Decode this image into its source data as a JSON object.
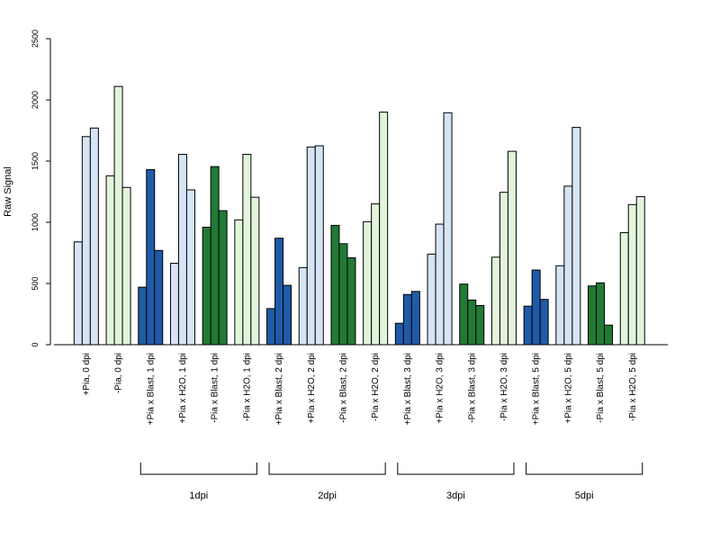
{
  "chart_data": {
    "type": "bar",
    "ylabel": "Raw Signal",
    "ylim": [
      0,
      2500
    ],
    "yticks": [
      0,
      500,
      1000,
      1500,
      2000,
      2500
    ],
    "grid": false,
    "legend": "none",
    "colors": {
      "plus_pia_blast": "#1f5ba8",
      "plus_pia_control": "#d6e4f5",
      "minus_pia_blast": "#217a35",
      "minus_pia_control": "#e2f5dc"
    },
    "categories": [
      {
        "label": "+Pia, 0 dpi",
        "color": "plus_pia_control",
        "values": [
          840,
          1700,
          1770
        ]
      },
      {
        "label": "-Pia, 0 dpi",
        "color": "minus_pia_control",
        "values": [
          1380,
          2110,
          1285
        ]
      },
      {
        "label": "+Pia x Blast, 1 dpi",
        "color": "plus_pia_blast",
        "values": [
          470,
          1430,
          770
        ]
      },
      {
        "label": "+Pia x H2O, 1 dpi",
        "color": "plus_pia_control",
        "values": [
          665,
          1555,
          1265
        ]
      },
      {
        "label": "-Pia x Blast, 1 dpi",
        "color": "minus_pia_blast",
        "values": [
          960,
          1455,
          1095
        ]
      },
      {
        "label": "-Pia x H2O, 1 dpi",
        "color": "minus_pia_control",
        "values": [
          1020,
          1555,
          1205
        ]
      },
      {
        "label": "+Pia x Blast, 2 dpi",
        "color": "plus_pia_blast",
        "values": [
          295,
          870,
          485
        ]
      },
      {
        "label": "+Pia x H2O, 2 dpi",
        "color": "plus_pia_control",
        "values": [
          630,
          1615,
          1625
        ]
      },
      {
        "label": "-Pia x Blast, 2 dpi",
        "color": "minus_pia_blast",
        "values": [
          975,
          825,
          710
        ]
      },
      {
        "label": "-Pia x H2O, 2 dpi",
        "color": "minus_pia_control",
        "values": [
          1005,
          1150,
          1900
        ]
      },
      {
        "label": "+Pia x Blast, 3 dpi",
        "color": "plus_pia_blast",
        "values": [
          175,
          410,
          435
        ]
      },
      {
        "label": "+Pia x H2O, 3 dpi",
        "color": "plus_pia_control",
        "values": [
          740,
          985,
          1895
        ]
      },
      {
        "label": "-Pia x Blast, 3 dpi",
        "color": "minus_pia_blast",
        "values": [
          495,
          365,
          320
        ]
      },
      {
        "label": "-Pia x H2O, 3 dpi",
        "color": "minus_pia_control",
        "values": [
          715,
          1245,
          1580
        ]
      },
      {
        "label": "+Pia x Blast, 5 dpi",
        "color": "plus_pia_blast",
        "values": [
          315,
          610,
          370
        ]
      },
      {
        "label": "+Pia x H2O, 5 dpi",
        "color": "plus_pia_control",
        "values": [
          645,
          1295,
          1775
        ]
      },
      {
        "label": "-Pia x Blast, 5 dpi",
        "color": "minus_pia_blast",
        "values": [
          480,
          505,
          160
        ]
      },
      {
        "label": "-Pia x H2O, 5 dpi",
        "color": "minus_pia_control",
        "values": [
          915,
          1145,
          1210
        ]
      }
    ],
    "groups": [
      {
        "label": "1dpi",
        "from": 2,
        "to": 5
      },
      {
        "label": "2dpi",
        "from": 6,
        "to": 9
      },
      {
        "label": "3dpi",
        "from": 10,
        "to": 13
      },
      {
        "label": "5dpi",
        "from": 14,
        "to": 17
      }
    ]
  }
}
